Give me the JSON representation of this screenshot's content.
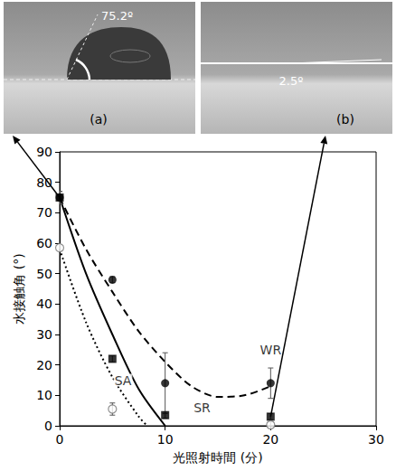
{
  "photos": [
    {
      "label": "(a)",
      "angle": "75.2º"
    },
    {
      "label": "(b)",
      "angle": "2.5º"
    }
  ],
  "chart_data": {
    "type": "scatter",
    "xlabel": "光照射時間 (分)",
    "ylabel": "水接触角 (°)",
    "xlim": [
      0,
      30
    ],
    "xticks": [
      0,
      10,
      20,
      30
    ],
    "ylim": [
      0,
      90
    ],
    "yticks": [
      0,
      10,
      20,
      30,
      40,
      50,
      60,
      70,
      80,
      90
    ],
    "grid": false,
    "series": [
      {
        "type": "scatter",
        "marker": "square",
        "color": "#000000",
        "x": [
          0,
          5,
          10,
          20
        ],
        "values": [
          75,
          22,
          3.5,
          3
        ],
        "errors": [
          2,
          1,
          1,
          1
        ]
      },
      {
        "type": "scatter",
        "marker": "circle",
        "color": "#000000",
        "x": [
          0,
          5,
          10,
          20
        ],
        "values": [
          75,
          48,
          14,
          14
        ],
        "errors": [
          2,
          1,
          10,
          5
        ]
      },
      {
        "type": "scatter",
        "marker": "open_circle",
        "color": "#777777",
        "x": [
          0,
          5,
          20
        ],
        "values": [
          58.5,
          5.5,
          0.3
        ],
        "errors": [
          1,
          2,
          1
        ]
      },
      {
        "type": "line",
        "line_style": "solid",
        "color": "#000000",
        "x": [
          0,
          2.5,
          5,
          7.5,
          10
        ],
        "values": [
          75,
          50,
          30,
          12,
          0
        ]
      },
      {
        "type": "line",
        "line_style": "dashed",
        "color": "#000000",
        "x": [
          0,
          2.5,
          5,
          7.5,
          10,
          12.5,
          15,
          17.5,
          20
        ],
        "values": [
          75,
          58,
          44,
          31,
          21,
          13,
          9.5,
          10,
          13
        ]
      },
      {
        "type": "line",
        "line_style": "dotted",
        "color": "#000000",
        "x": [
          0,
          2.5,
          5,
          7.5,
          8.3
        ],
        "values": [
          58,
          34,
          16,
          3,
          0
        ]
      }
    ],
    "annotations": [
      {
        "text": "SA",
        "x": 6,
        "y": 15
      },
      {
        "text": "SR",
        "x": 13.5,
        "y": 6
      },
      {
        "text": "WR",
        "x": 20,
        "y": 25
      }
    ]
  }
}
